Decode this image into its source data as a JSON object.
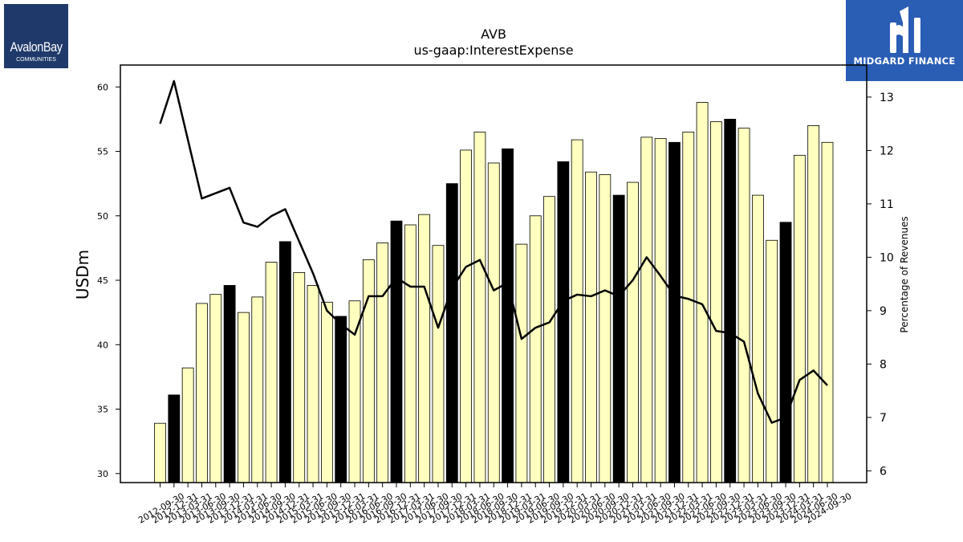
{
  "branding": {
    "left_name": "AvalonBay",
    "left_sub": "COMMUNITIES",
    "right_name": "MIDGARD FINANCE",
    "right_logo_icon": "midgard-m-icon",
    "right_bg": "#2a5db4",
    "left_bg": "#1f3a6a"
  },
  "chart_data": {
    "type": "bar",
    "title": "AVB",
    "subtitle": "us-gaap:InterestExpense",
    "ylabel": "USDm",
    "y2label": "Percentage of Revenues",
    "ylim": [
      29.3,
      61.7
    ],
    "y2lim": [
      5.78,
      13.6
    ],
    "yticks": [
      30,
      35,
      40,
      45,
      50,
      55,
      60
    ],
    "y2ticks": [
      6,
      7,
      8,
      9,
      10,
      11,
      12,
      13
    ],
    "categories": [
      "2012-09-30",
      "2012-12-31",
      "2013-03-31",
      "2013-06-30",
      "2013-09-30",
      "2013-12-31",
      "2014-03-31",
      "2014-06-30",
      "2014-09-30",
      "2014-12-31",
      "2015-03-31",
      "2015-06-30",
      "2015-09-30",
      "2015-12-31",
      "2016-03-31",
      "2016-06-30",
      "2016-09-30",
      "2016-12-31",
      "2017-03-31",
      "2017-06-30",
      "2017-09-30",
      "2017-12-31",
      "2018-03-31",
      "2018-06-30",
      "2018-09-30",
      "2018-12-31",
      "2019-03-31",
      "2019-06-30",
      "2019-09-30",
      "2019-12-31",
      "2020-03-31",
      "2020-06-30",
      "2020-09-30",
      "2020-12-31",
      "2021-03-31",
      "2021-06-30",
      "2021-09-30",
      "2021-12-31",
      "2022-03-31",
      "2022-06-30",
      "2022-09-30",
      "2022-12-31",
      "2023-03-31",
      "2023-06-30",
      "2023-09-30",
      "2023-12-31",
      "2024-03-31",
      "2024-06-30",
      "2024-09-30"
    ],
    "xtick_labels": [
      "2012-09-30",
      "2012-12-31",
      "2013-03-31",
      "2013-06-30",
      "2013-09-30",
      "2013-12-31",
      "2014-03-31",
      "2014-06-30",
      "2014-09-30",
      "2014-12-31",
      "2015-03-31",
      "2015-06-30",
      "2015-09-30",
      "2015-12-31",
      "2016-03-31",
      "2016-06-30",
      "2016-09-30",
      "2016-12-31",
      "2017-03-31",
      "2017-06-30",
      "2017-09-30",
      "2017-12-31",
      "2018-03-31",
      "2018-06-30",
      "2018-09-30",
      "2018-12-31",
      "2019-03-31",
      "2019-06-30",
      "2019-09-30",
      "2019-12-31",
      "2020-03-31",
      "2020-06-30",
      "2020-09-30",
      "2020-12-31",
      "2021-03-31",
      "2021-06-30",
      "2021-09-30",
      "2021-12-31",
      "2022-03-31",
      "2022-06-30",
      "2022-09-30",
      "2022-12-31",
      "2023-03-31",
      "2023-06-30",
      "2023-09-30",
      "2023-12-31",
      "2024-03-31",
      "2024-06-30",
      "2024-09-30"
    ],
    "values": [
      33.9,
      36.1,
      38.2,
      43.2,
      43.9,
      44.6,
      42.5,
      43.7,
      46.4,
      48.0,
      45.6,
      44.6,
      43.3,
      42.2,
      43.4,
      46.6,
      47.9,
      49.6,
      49.3,
      50.1,
      47.7,
      52.5,
      55.1,
      56.5,
      54.1,
      55.2,
      47.8,
      50.0,
      51.5,
      54.2,
      55.9,
      53.4,
      53.2,
      51.6,
      52.6,
      56.1,
      56.0,
      55.7,
      56.5,
      58.8,
      57.3,
      57.5,
      56.8,
      51.6,
      48.1,
      49.5,
      54.7,
      57.0,
      55.7
    ],
    "year_end_highlight": [
      false,
      true,
      false,
      false,
      false,
      true,
      false,
      false,
      false,
      true,
      false,
      false,
      false,
      true,
      false,
      false,
      false,
      true,
      false,
      false,
      false,
      true,
      false,
      false,
      false,
      true,
      false,
      false,
      false,
      true,
      false,
      false,
      false,
      true,
      false,
      false,
      false,
      true,
      false,
      false,
      false,
      true,
      false,
      false,
      false,
      true,
      false,
      false,
      false
    ],
    "line_values": [
      12.5,
      13.3,
      12.2,
      11.1,
      11.2,
      11.3,
      10.65,
      10.57,
      10.77,
      10.9,
      10.3,
      9.7,
      9.0,
      8.75,
      8.55,
      9.27,
      9.27,
      9.62,
      9.45,
      9.45,
      8.68,
      9.42,
      9.82,
      9.95,
      9.38,
      9.52,
      8.47,
      8.68,
      8.78,
      9.18,
      9.3,
      9.27,
      9.38,
      9.27,
      9.57,
      10.0,
      9.65,
      9.28,
      9.22,
      9.12,
      8.62,
      8.58,
      8.42,
      7.45,
      6.9,
      7.0,
      7.7,
      7.88,
      7.6
    ],
    "colors": {
      "bar": "#ffffbf",
      "bar_highlight": "#000000",
      "bar_edge": "#000000",
      "line": "#000000"
    }
  }
}
